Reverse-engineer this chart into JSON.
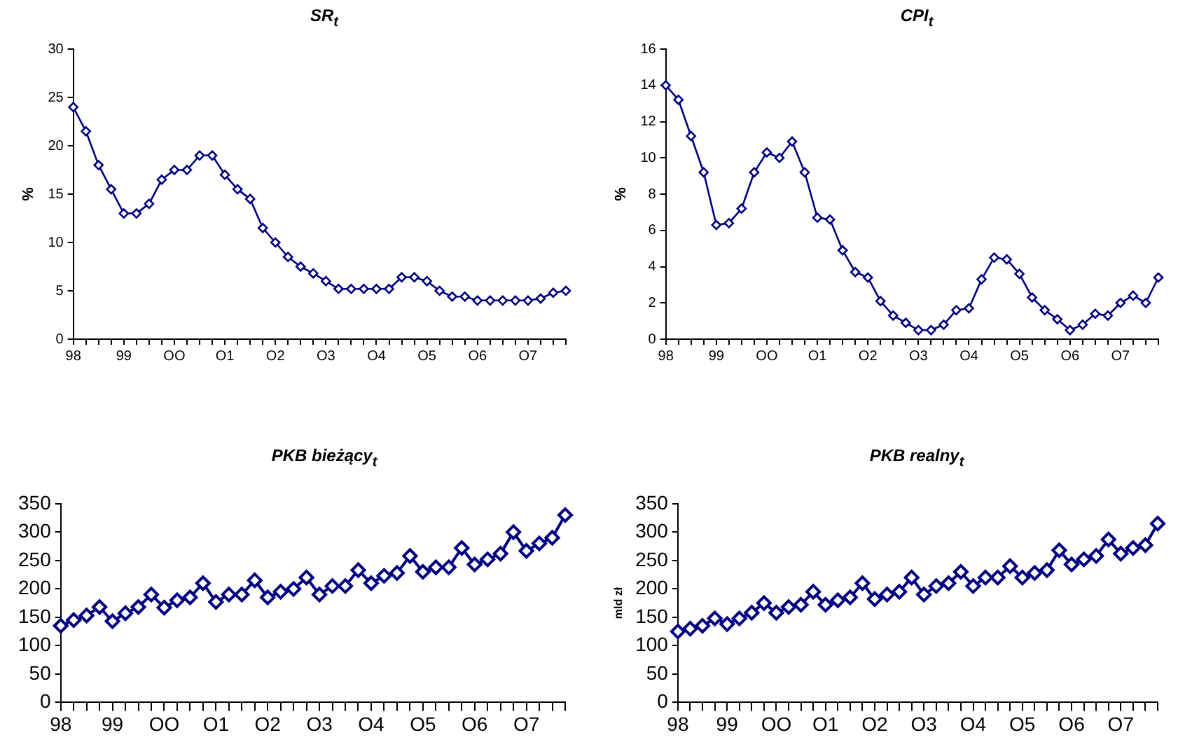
{
  "chart_data": [
    {
      "type": "line",
      "title": "SR$_{t}$",
      "ylabel": "%",
      "categories": [
        "98",
        null,
        null,
        null,
        "99",
        null,
        null,
        null,
        "OO",
        null,
        null,
        null,
        "O1",
        null,
        null,
        null,
        "O2",
        null,
        null,
        null,
        "O3",
        null,
        null,
        null,
        "O4",
        null,
        null,
        null,
        "O5",
        null,
        null,
        null,
        "O6",
        null,
        null,
        null,
        "O7",
        null,
        null,
        null
      ],
      "series": [
        {
          "color": "#000080",
          "values": [
            24,
            21.5,
            18,
            15.5,
            13,
            13,
            14,
            16.5,
            17.5,
            17.5,
            19,
            19,
            17,
            15.5,
            14.5,
            11.5,
            10,
            8.5,
            7.5,
            6.8,
            6,
            5.2,
            5.2,
            5.2,
            5.2,
            5.2,
            6.4,
            6.4,
            6,
            5,
            4.4,
            4.4,
            4,
            4,
            4,
            4,
            4,
            4.2,
            4.8,
            5
          ]
        }
      ],
      "ylim": [
        0,
        30
      ],
      "yticks": [
        0,
        5,
        10,
        15,
        20,
        25,
        30
      ],
      "grid": false,
      "legend": false,
      "marker": "diamond",
      "line_style": "solid"
    },
    {
      "type": "line",
      "title": "CPI$_{t}$",
      "ylabel": "%",
      "categories": [
        "98",
        null,
        null,
        null,
        "99",
        null,
        null,
        null,
        "OO",
        null,
        null,
        null,
        "O1",
        null,
        null,
        null,
        "O2",
        null,
        null,
        null,
        "O3",
        null,
        null,
        null,
        "O4",
        null,
        null,
        null,
        "O5",
        null,
        null,
        null,
        "O6",
        null,
        null,
        null,
        "O7",
        null,
        null,
        null
      ],
      "series": [
        {
          "color": "#000080",
          "values": [
            14,
            13.2,
            11.2,
            9.2,
            6.3,
            6.4,
            7.2,
            9.2,
            10.3,
            10,
            10.9,
            9.2,
            6.7,
            6.6,
            4.9,
            3.7,
            3.4,
            2.1,
            1.3,
            0.9,
            0.5,
            0.5,
            0.8,
            1.6,
            1.7,
            3.3,
            4.5,
            4.4,
            3.6,
            2.3,
            1.6,
            1.1,
            0.5,
            0.8,
            1.4,
            1.3,
            2,
            2.4,
            2,
            3.4
          ]
        }
      ],
      "ylim": [
        0,
        16
      ],
      "yticks": [
        0,
        2,
        4,
        6,
        8,
        10,
        12,
        14,
        16
      ],
      "grid": false,
      "legend": false,
      "marker": "diamond",
      "line_style": "solid"
    },
    {
      "type": "line",
      "title": "PKB bieżący$_{t}$",
      "categories": [
        "98",
        null,
        null,
        null,
        "99",
        null,
        null,
        null,
        "OO",
        null,
        null,
        null,
        "O1",
        null,
        null,
        null,
        "O2",
        null,
        null,
        null,
        "O3",
        null,
        null,
        null,
        "O4",
        null,
        null,
        null,
        "O5",
        null,
        null,
        null,
        "O6",
        null,
        null,
        null,
        "O7",
        null,
        null,
        null
      ],
      "series": [
        {
          "color": "#000080",
          "values": [
            135,
            145,
            153,
            168,
            143,
            157,
            168,
            190,
            167,
            180,
            185,
            210,
            177,
            190,
            190,
            215,
            185,
            195,
            200,
            220,
            190,
            205,
            205,
            233,
            210,
            223,
            228,
            258,
            230,
            238,
            238,
            272,
            243,
            252,
            262,
            300,
            267,
            280,
            290,
            330
          ]
        }
      ],
      "ylim": [
        0,
        350
      ],
      "yticks": [
        0,
        50,
        100,
        150,
        200,
        250,
        300,
        350
      ],
      "grid": false,
      "legend": false,
      "marker": "diamond",
      "line_style": "solid"
    },
    {
      "type": "line",
      "title": "PKB realny$_{t}$",
      "ylabel": "mld zł",
      "categories": [
        "98",
        null,
        null,
        null,
        "99",
        null,
        null,
        null,
        "OO",
        null,
        null,
        null,
        "O1",
        null,
        null,
        null,
        "O2",
        null,
        null,
        null,
        "O3",
        null,
        null,
        null,
        "O4",
        null,
        null,
        null,
        "O5",
        null,
        null,
        null,
        "O6",
        null,
        null,
        null,
        "O7",
        null,
        null,
        null
      ],
      "series": [
        {
          "color": "#000080",
          "values": [
            125,
            130,
            135,
            148,
            138,
            148,
            158,
            175,
            158,
            168,
            172,
            195,
            172,
            180,
            185,
            210,
            182,
            190,
            195,
            220,
            190,
            205,
            210,
            230,
            205,
            220,
            220,
            240,
            220,
            228,
            233,
            268,
            243,
            252,
            258,
            287,
            262,
            272,
            277,
            315
          ]
        }
      ],
      "ylim": [
        0,
        350
      ],
      "yticks": [
        0,
        50,
        100,
        150,
        200,
        250,
        300,
        350
      ],
      "grid": false,
      "legend": false,
      "marker": "diamond",
      "line_style": "solid"
    }
  ]
}
